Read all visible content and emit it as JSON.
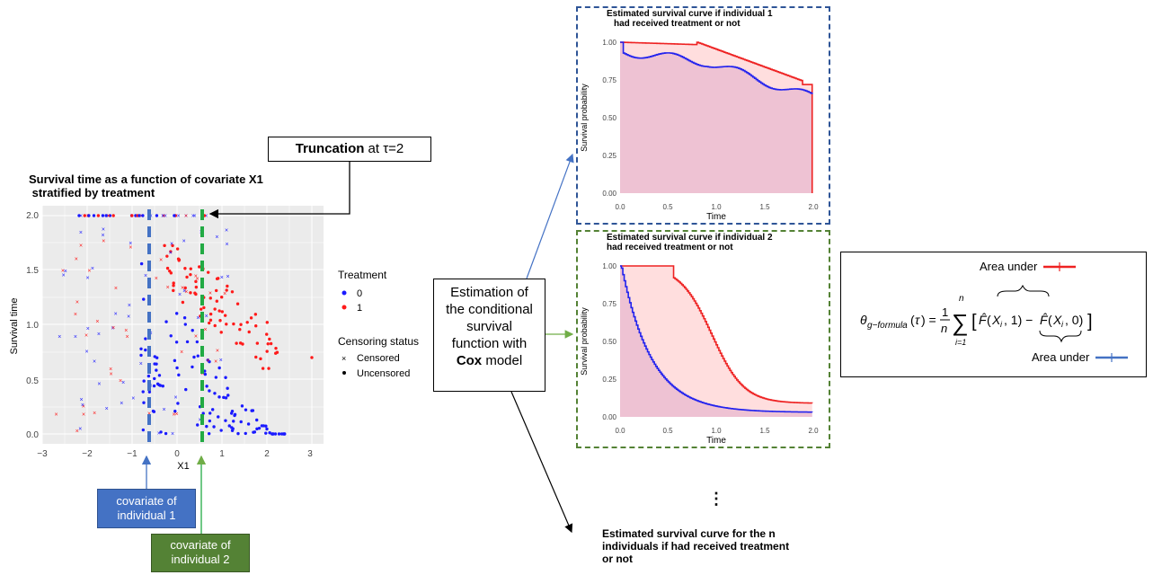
{
  "scatter": {
    "title_line1": "Survival time as a function of covariate X1",
    "title_line2": " stratified by treatment",
    "xlabel": "X1",
    "ylabel": "Survival time",
    "x_ticks": [
      "−3",
      "−2",
      "−1",
      "0",
      "1",
      "2",
      "3"
    ],
    "y_ticks": [
      "0.0",
      "0.5",
      "1.0",
      "1.5",
      "2.0"
    ],
    "legend_treatment_title": "Treatment",
    "legend_treatment_items": [
      "0",
      "1"
    ],
    "legend_censor_title": "Censoring status",
    "legend_censor_items": [
      "Censored",
      "Uncensored"
    ],
    "colors": {
      "treat0": "#1a1aff",
      "treat1": "#ff1a1a",
      "panel_bg": "#ebebeb",
      "v_line1": "#4472c4",
      "v_line2": "#22aa44"
    }
  },
  "truncation": {
    "bold": "Truncation",
    "rest": " at τ=2"
  },
  "individual1_label_line1": "covariate of",
  "individual1_label_line2": "individual 1",
  "individual2_label_line1": "covariate of",
  "individual2_label_line2": "individual 2",
  "estimation": {
    "line1": "Estimation of",
    "line2": "the conditional",
    "line3": "survival",
    "line4": "function with",
    "bold": "Cox",
    "rest": " model"
  },
  "curve1": {
    "title_line1": "Estimated survival curve if individual 1",
    "title_line2": "had received treatment or not",
    "ylabel": "Survival probability",
    "xlabel": "Time",
    "x_ticks": [
      "0.0",
      "0.5",
      "1.0",
      "1.5",
      "2.0"
    ],
    "y_ticks": [
      "0.00",
      "0.25",
      "0.50",
      "0.75",
      "1.00"
    ]
  },
  "curve2": {
    "title_line1": "Estimated survival curve if individual 2",
    "title_line2": "had received treatment or not",
    "ylabel": "Survival probability",
    "xlabel": "Time",
    "x_ticks": [
      "0.0",
      "0.5",
      "1.0",
      "1.5",
      "2.0"
    ],
    "y_ticks": [
      "0.00",
      "0.25",
      "0.50",
      "0.75",
      "1.00"
    ]
  },
  "ellipsis": "⋮",
  "bottom_text_line1": "Estimated survival curve for the n",
  "bottom_text_line2": "individuals if had received treatment",
  "bottom_text_line3": "or not",
  "formula": {
    "area_under_top": "Area under",
    "area_under_bottom": "Area under"
  }
}
